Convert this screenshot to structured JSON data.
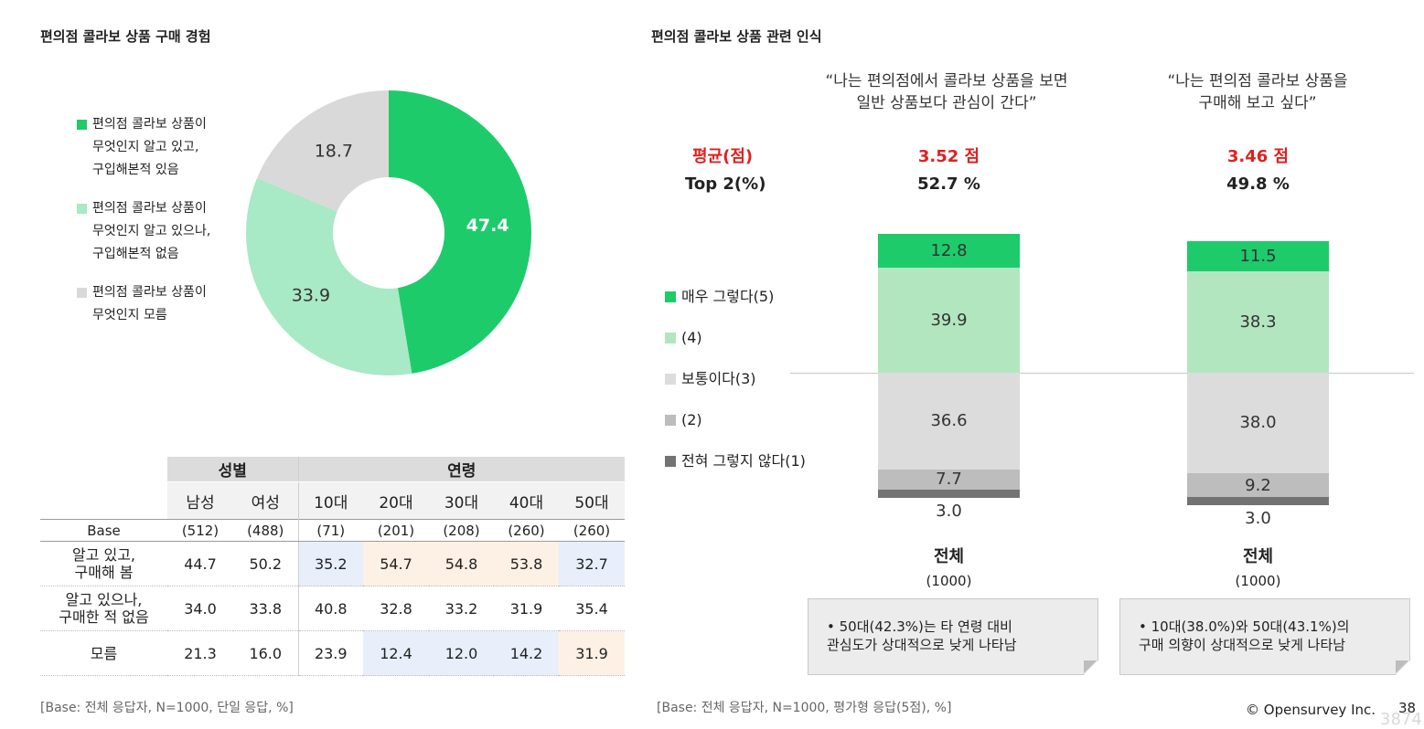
{
  "left": {
    "title": "편의점 콜라보 상품 구매 경험",
    "donut_legend": [
      {
        "text": "편의점 콜라보 상품이\n무엇인지 알고 있고,\n구입해본적 있음",
        "color": "#1ecb6b"
      },
      {
        "text": "편의점 콜라보 상품이\n무엇인지 알고 있으나,\n구입해본적 없음",
        "color": "#a8e9c6"
      },
      {
        "text": "편의점 콜라보 상품이\n무엇인지 모름",
        "color": "#d9d9d9"
      }
    ],
    "table": {
      "group_gender": "성별",
      "group_age": "연령",
      "cols": [
        "남성",
        "여성",
        "10대",
        "20대",
        "30대",
        "40대",
        "50대"
      ],
      "base_label": "Base",
      "base": [
        "(512)",
        "(488)",
        "(71)",
        "(201)",
        "(208)",
        "(260)",
        "(260)"
      ],
      "rows": [
        {
          "label": "알고 있고,\n구매해 봄",
          "values": [
            "44.7",
            "50.2",
            "35.2",
            "54.7",
            "54.8",
            "53.8",
            "32.7"
          ],
          "hl": [
            "",
            "",
            "b",
            "o",
            "o",
            "o",
            "b"
          ]
        },
        {
          "label": "알고 있으나,\n구매한 적 없음",
          "values": [
            "34.0",
            "33.8",
            "40.8",
            "32.8",
            "33.2",
            "31.9",
            "35.4"
          ],
          "hl": [
            "",
            "",
            "",
            "",
            "",
            "",
            ""
          ]
        },
        {
          "label": "모름",
          "values": [
            "21.3",
            "16.0",
            "23.9",
            "12.4",
            "12.0",
            "14.2",
            "31.9"
          ],
          "hl": [
            "",
            "",
            "",
            "b",
            "b",
            "b",
            "o"
          ]
        }
      ]
    },
    "note": "[Base: 전체 응답자, N=1000, 단일 응답, %]"
  },
  "right": {
    "title": "편의점 콜라보 상품 관련 인식",
    "avg_label": "평균(점)",
    "top2_label": "Top 2(%)",
    "legend": [
      {
        "text": "매우 그렇다(5)",
        "color": "#1ecb6b"
      },
      {
        "text": "(4)",
        "color": "#b2e6bf"
      },
      {
        "text": "보통이다(3)",
        "color": "#dcdcdc"
      },
      {
        "text": "(2)",
        "color": "#bdbdbd"
      },
      {
        "text": "전혀 그렇지 않다(1)",
        "color": "#737373"
      }
    ],
    "columns": [
      {
        "question": "“나는 편의점에서 콜라보 상품을 보면\n일반 상품보다 관심이 간다”",
        "avg": "3.52 점",
        "top2": "52.7 %",
        "group": "전체",
        "n": "(1000)",
        "note": "• 50대(42.3%)는 타 연령 대비\n관심도가 상대적으로 낮게 나타남"
      },
      {
        "question": "“나는 편의점 콜라보 상품을\n구매해 보고 싶다”",
        "avg": "3.46 점",
        "top2": "49.8 %",
        "group": "전체",
        "n": "(1000)",
        "note": "• 10대(38.0%)와 50대(43.1%)의\n구매 의향이 상대적으로 낮게 나타남"
      }
    ],
    "note": "[Base: 전체 응답자, N=1000, 평가형 응답(5점), %]"
  },
  "footer": {
    "copyright": "© Opensurvey Inc.",
    "page": "38",
    "overlay": "3874"
  },
  "chart_data": [
    {
      "type": "pie",
      "title": "편의점 콜라보 상품 구매 경험",
      "labels": [
        "편의점 콜라보 상품이 무엇인지 알고 있고, 구입해본적 있음",
        "편의점 콜라보 상품이 무엇인지 알고 있으나, 구입해본적 없음",
        "편의점 콜라보 상품이 무엇인지 모름"
      ],
      "values": [
        47.4,
        33.9,
        18.7
      ],
      "colors": [
        "#1ecb6b",
        "#a8e9c6",
        "#d9d9d9"
      ],
      "label_colors": [
        "#ffffff",
        "#333333",
        "#333333"
      ],
      "donut": true,
      "legend": "left"
    },
    {
      "type": "bar",
      "stacked": true,
      "title": "편의점 콜라보 상품 관련 인식",
      "categories": [
        "“나는 편의점에서 콜라보 상품을 보면 일반 상품보다 관심이 간다”",
        "“나는 편의점 콜라보 상품을 구매해 보고 싶다”"
      ],
      "series": [
        {
          "name": "매우 그렇다(5)",
          "values": [
            12.8,
            11.5
          ],
          "color": "#1ecb6b"
        },
        {
          "name": "(4)",
          "values": [
            39.9,
            38.3
          ],
          "color": "#b2e6bf"
        },
        {
          "name": "보통이다(3)",
          "values": [
            36.6,
            38.0
          ],
          "color": "#dcdcdc"
        },
        {
          "name": "(2)",
          "values": [
            7.7,
            9.2
          ],
          "color": "#bdbdbd"
        },
        {
          "name": "전혀 그렇지 않다(1)",
          "values": [
            3.0,
            3.0
          ],
          "color": "#737373"
        }
      ],
      "ylim": [
        0,
        100
      ],
      "legend": "left"
    }
  ]
}
